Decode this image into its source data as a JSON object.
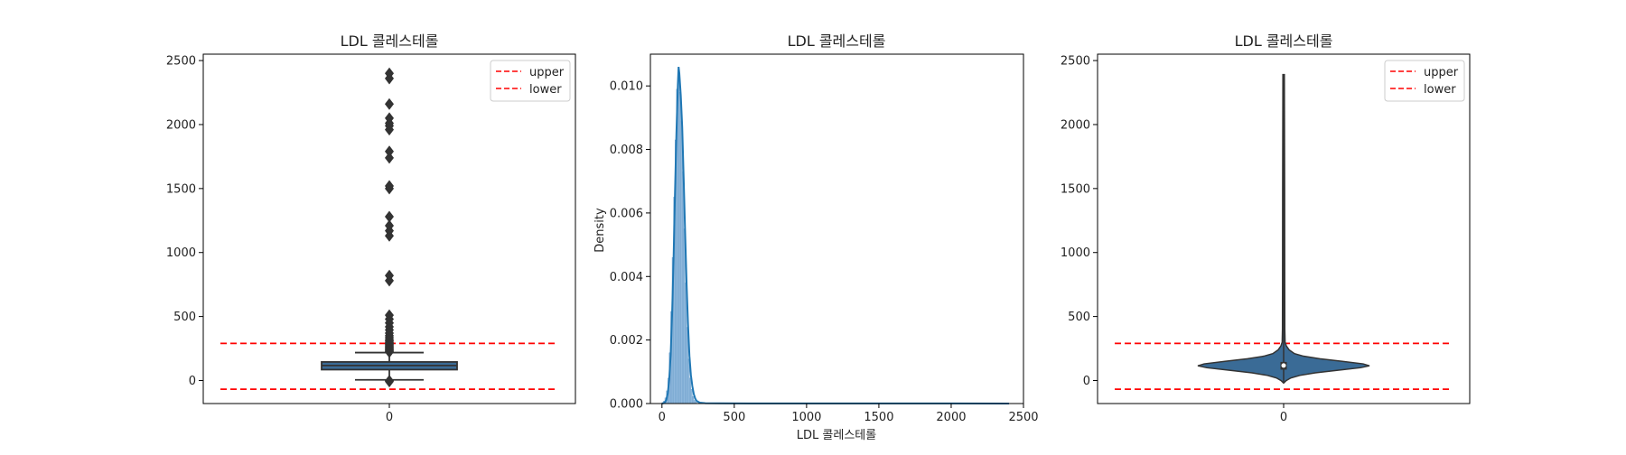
{
  "colors": {
    "box_fill": "#3a6b96",
    "box_edge": "#333333",
    "line_blue": "#1f77b4",
    "hist_fill": "#8fb8dc",
    "ref_line": "#ff0000",
    "axis": "#000000",
    "legend_border": "#cccccc"
  },
  "chart_data": [
    {
      "type": "box",
      "title": "LDL 콜레스테롤",
      "xlabel": "",
      "ylabel": "",
      "x_ticks": [
        "0"
      ],
      "ylim": [
        -180,
        2550
      ],
      "y_ticks": [
        0,
        500,
        1000,
        1500,
        2000,
        2500
      ],
      "y_tick_labels": [
        "0",
        "500",
        "1000",
        "1500",
        "2000",
        "2500"
      ],
      "box": {
        "q1": 85,
        "median": 117,
        "q3": 145,
        "whisker_low": 5,
        "whisker_high": 218
      },
      "outliers_high": [
        222,
        228,
        235,
        241,
        248,
        255,
        262,
        270,
        278,
        285,
        292,
        300,
        310,
        320,
        335,
        350,
        370,
        395,
        420,
        450,
        480,
        510,
        780,
        820,
        1130,
        1170,
        1210,
        1280,
        1500,
        1520,
        1740,
        1790,
        1960,
        1990,
        2010,
        2050,
        2160,
        2360,
        2400
      ],
      "outliers_low": [
        -2,
        -8
      ],
      "reference_lines": [
        {
          "name": "upper",
          "value": 290,
          "style": "dashed"
        },
        {
          "name": "lower",
          "value": -68,
          "style": "dashed"
        }
      ],
      "legend": {
        "position": "top-right",
        "entries": [
          "upper",
          "lower"
        ]
      }
    },
    {
      "type": "area",
      "title": "LDL 콜레스테롤",
      "xlabel": "LDL 콜레스테롤",
      "ylabel": "Density",
      "xlim": [
        -80,
        2500
      ],
      "ylim": [
        0,
        0.011
      ],
      "x_ticks": [
        0,
        500,
        1000,
        1500,
        2000,
        2500
      ],
      "x_tick_labels": [
        "0",
        "500",
        "1000",
        "1500",
        "2000",
        "2500"
      ],
      "y_ticks": [
        0,
        0.002,
        0.004,
        0.006,
        0.008,
        0.01
      ],
      "y_tick_labels": [
        "0.000",
        "0.002",
        "0.004",
        "0.006",
        "0.008",
        "0.010"
      ],
      "kde": {
        "x": [
          0,
          10,
          20,
          30,
          40,
          50,
          60,
          70,
          80,
          90,
          100,
          110,
          115,
          120,
          130,
          140,
          150,
          160,
          170,
          180,
          190,
          200,
          210,
          220,
          230,
          240,
          260,
          300,
          400,
          600,
          1000,
          1500,
          2000,
          2400
        ],
        "y": [
          0.0,
          1e-05,
          4e-05,
          0.00011,
          0.00032,
          0.00075,
          0.00152,
          0.0028,
          0.0045,
          0.0066,
          0.0085,
          0.01005,
          0.0106,
          0.0104,
          0.0097,
          0.0087,
          0.0071,
          0.0054,
          0.0038,
          0.0025,
          0.0015,
          0.0009,
          0.00055,
          0.0003,
          0.00016,
          8e-05,
          3e-05,
          1.2e-05,
          6e-06,
          4e-06,
          3e-06,
          2e-06,
          2e-06,
          1e-06
        ]
      },
      "histogram": {
        "bin_start": 0,
        "bin_width": 10,
        "densities": [
          3e-05,
          8e-05,
          0.00018,
          0.0004,
          0.0008,
          0.0016,
          0.0029,
          0.0046,
          0.0065,
          0.0083,
          0.0099,
          0.0102,
          0.0098,
          0.0089,
          0.0073,
          0.0055,
          0.0038,
          0.0024,
          0.0014,
          0.0008,
          0.00045,
          0.00022,
          0.0001,
          5e-05
        ]
      }
    },
    {
      "type": "violin",
      "title": "LDL 콜레스테롤",
      "xlabel": "",
      "ylabel": "",
      "x_ticks": [
        "0"
      ],
      "ylim": [
        -180,
        2550
      ],
      "y_ticks": [
        0,
        500,
        1000,
        1500,
        2000,
        2500
      ],
      "y_tick_labels": [
        "0",
        "500",
        "1000",
        "1500",
        "2000",
        "2500"
      ],
      "range": [
        -20,
        2390
      ],
      "box": {
        "q1": 85,
        "median": 117,
        "q3": 145
      },
      "profile": {
        "y": [
          -20,
          0,
          20,
          40,
          60,
          80,
          100,
          115,
          130,
          150,
          170,
          190,
          210,
          240,
          270,
          300,
          400,
          800,
          1500,
          2390
        ],
        "half_width": [
          0,
          3,
          8,
          18,
          35,
          60,
          85,
          95,
          88,
          65,
          40,
          22,
          12,
          6,
          3,
          1.6,
          1.3,
          1.2,
          1.1,
          0.8
        ]
      },
      "reference_lines": [
        {
          "name": "upper",
          "value": 290,
          "style": "dashed"
        },
        {
          "name": "lower",
          "value": -68,
          "style": "dashed"
        }
      ],
      "legend": {
        "position": "top-right",
        "entries": [
          "upper",
          "lower"
        ]
      }
    }
  ]
}
